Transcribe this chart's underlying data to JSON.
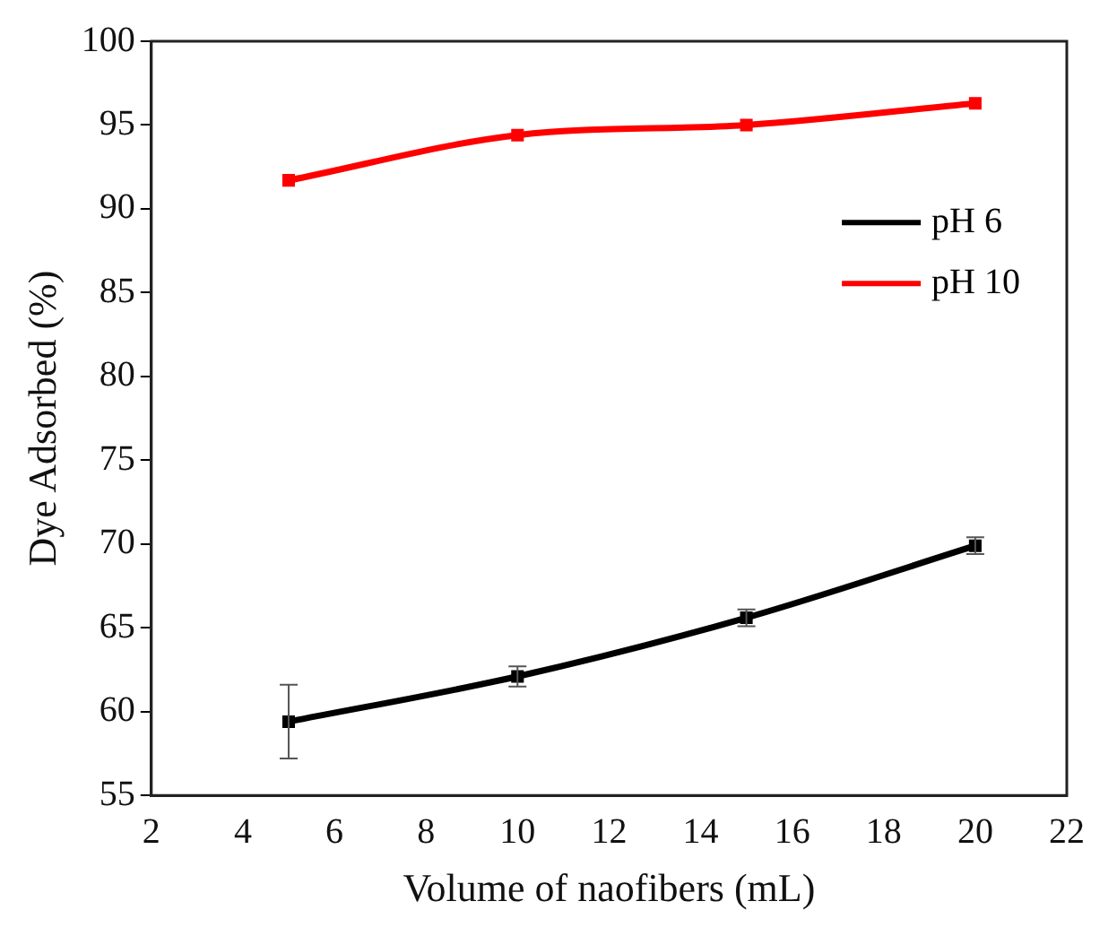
{
  "chart_data": {
    "type": "line",
    "xlabel": "Volume of naofibers (mL)",
    "ylabel": "Dye Adsorbed (%)",
    "x": [
      5,
      10,
      15,
      20
    ],
    "series": [
      {
        "name": "pH 6",
        "color": "#000000",
        "values": [
          59.4,
          62.1,
          65.6,
          69.9
        ],
        "errors": [
          2.2,
          0.6,
          0.5,
          0.5
        ]
      },
      {
        "name": "pH 10",
        "color": "#ff0000",
        "values": [
          91.7,
          94.4,
          95.0,
          96.3
        ]
      }
    ],
    "xlim": [
      2,
      22
    ],
    "xticks": [
      2,
      4,
      6,
      8,
      10,
      12,
      14,
      16,
      18,
      20,
      22
    ],
    "ylim": [
      55,
      100
    ],
    "yticks": [
      55,
      60,
      65,
      70,
      75,
      80,
      85,
      90,
      95,
      100
    ],
    "grid": false,
    "legend": "top right",
    "marker": "square",
    "line_style": "solid"
  }
}
